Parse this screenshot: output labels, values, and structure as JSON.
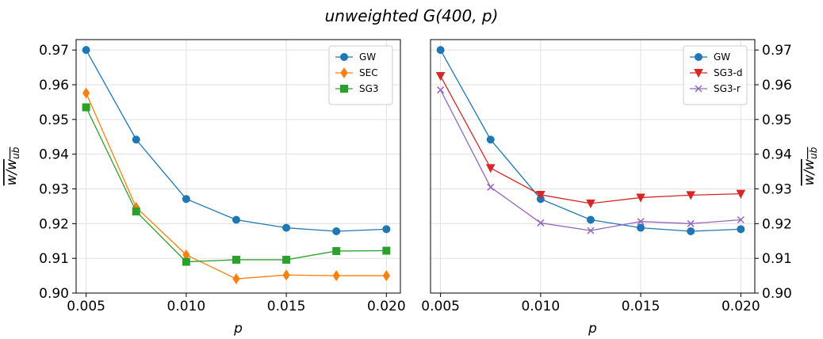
{
  "figure": {
    "title": "unweighted G(400, p)"
  },
  "chart_data": [
    {
      "type": "line",
      "x": [
        0.005,
        0.0075,
        0.01,
        0.0125,
        0.015,
        0.0175,
        0.02
      ],
      "xlabel": "p",
      "ylabel": "w/w_ub",
      "xlim": [
        0.0045,
        0.0207
      ],
      "ylim": [
        0.9,
        0.973
      ],
      "xticks": [
        "0.005",
        "0.010",
        "0.015",
        "0.020"
      ],
      "yticks": [
        "0.90",
        "0.91",
        "0.92",
        "0.93",
        "0.94",
        "0.95",
        "0.96",
        "0.97"
      ],
      "grid": true,
      "legend_position": "top-right",
      "series": [
        {
          "name": "GW",
          "color": "#1f77b4",
          "marker": "circle",
          "values": [
            0.97,
            0.9442,
            0.9271,
            0.9211,
            0.9188,
            0.9178,
            0.9184
          ]
        },
        {
          "name": "SEC",
          "color": "#ff7f0e",
          "marker": "diamond",
          "values": [
            0.9576,
            0.9247,
            0.911,
            0.9041,
            0.9052,
            0.905,
            0.905
          ]
        },
        {
          "name": "SG3",
          "color": "#2ca02c",
          "marker": "square",
          "values": [
            0.9535,
            0.9235,
            0.909,
            0.9096,
            0.9096,
            0.9121,
            0.9122
          ]
        }
      ]
    },
    {
      "type": "line",
      "x": [
        0.005,
        0.0075,
        0.01,
        0.0125,
        0.015,
        0.0175,
        0.02
      ],
      "xlabel": "p",
      "ylabel": "w/w_ub",
      "xlim": [
        0.0045,
        0.0207
      ],
      "ylim": [
        0.9,
        0.973
      ],
      "xticks": [
        "0.005",
        "0.010",
        "0.015",
        "0.020"
      ],
      "yticks": [
        "0.90",
        "0.91",
        "0.92",
        "0.93",
        "0.94",
        "0.95",
        "0.96",
        "0.97"
      ],
      "grid": true,
      "legend_position": "top-right",
      "series": [
        {
          "name": "GW",
          "color": "#1f77b4",
          "marker": "circle",
          "values": [
            0.97,
            0.9442,
            0.9271,
            0.9211,
            0.9188,
            0.9178,
            0.9184
          ]
        },
        {
          "name": "SG3-d",
          "color": "#d62728",
          "marker": "triangle-down",
          "values": [
            0.9625,
            0.936,
            0.9283,
            0.9258,
            0.9275,
            0.9282,
            0.9286
          ]
        },
        {
          "name": "SG3-r",
          "color": "#9467bd",
          "marker": "x",
          "values": [
            0.9585,
            0.9305,
            0.9202,
            0.918,
            0.9206,
            0.92,
            0.9211
          ]
        }
      ]
    }
  ]
}
